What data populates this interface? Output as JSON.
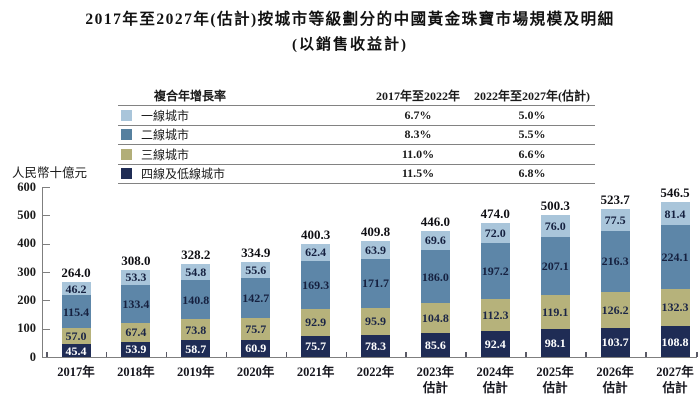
{
  "title": "2017年至2027年(估計)按城市等級劃分的中國黃金珠寶市場規模及明細",
  "subtitle": "(以銷售收益計)",
  "y_axis_label": "人民幣十億元",
  "legend": {
    "header": "複合年增長率",
    "col1": "2017年至2022年",
    "col2": "2022年至2027年(估計)",
    "rows": [
      {
        "label": "一線城市",
        "color": "#a9c5da",
        "cagr_2017_2022": "6.7%",
        "cagr_2022_2027": "5.0%"
      },
      {
        "label": "二線城市",
        "color": "#56809f",
        "cagr_2017_2022": "8.3%",
        "cagr_2022_2027": "5.5%"
      },
      {
        "label": "三線城市",
        "color": "#b2ae78",
        "cagr_2017_2022": "11.0%",
        "cagr_2022_2027": "6.6%"
      },
      {
        "label": "四線及低線城市",
        "color": "#1f2c55",
        "cagr_2017_2022": "11.5%",
        "cagr_2022_2027": "6.8%"
      }
    ]
  },
  "chart_data": {
    "type": "bar",
    "stacked": true,
    "grid": false,
    "legend_position": "top",
    "ylim": [
      0,
      600
    ],
    "y_ticks": [
      0,
      100,
      200,
      300,
      400,
      500,
      600
    ],
    "categories": [
      "2017年",
      "2018年",
      "2019年",
      "2020年",
      "2021年",
      "2022年",
      "2023年\n估計",
      "2024年\n估計",
      "2025年\n估計",
      "2026年\n估計",
      "2027年\n估計"
    ],
    "series": [
      {
        "name": "四線及低線城市",
        "color": "#1f2c55",
        "text_color": "#ffffff",
        "values": [
          45.4,
          53.9,
          58.7,
          60.9,
          75.7,
          78.3,
          85.6,
          92.4,
          98.1,
          103.7,
          108.8
        ]
      },
      {
        "name": "三線城市",
        "color": "#b6b27b",
        "text_color": "#1b2546",
        "values": [
          57.0,
          67.4,
          73.8,
          75.7,
          92.9,
          95.9,
          104.8,
          112.3,
          119.1,
          126.2,
          132.3
        ]
      },
      {
        "name": "二線城市",
        "color": "#5d86a8",
        "text_color": "#15203f",
        "values": [
          115.4,
          133.4,
          140.8,
          142.7,
          169.3,
          171.7,
          186.0,
          197.2,
          207.1,
          216.3,
          224.1
        ]
      },
      {
        "name": "一線城市",
        "color": "#a9c5da",
        "text_color": "#15203f",
        "values": [
          46.2,
          53.3,
          54.8,
          55.6,
          62.4,
          63.9,
          69.6,
          72.0,
          76.0,
          77.5,
          81.4
        ]
      }
    ],
    "totals": [
      264.0,
      308.0,
      328.2,
      334.9,
      400.3,
      409.8,
      446.0,
      474.0,
      500.3,
      523.7,
      546.5
    ]
  }
}
